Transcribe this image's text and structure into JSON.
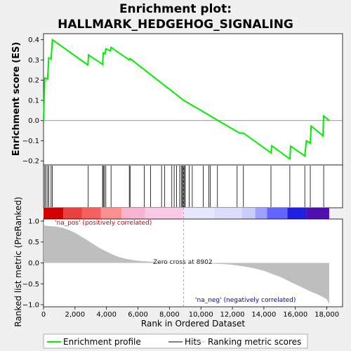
{
  "chart_data": {
    "type": "line",
    "title": "Enrichment plot:",
    "subtitle": "HALLMARK_HEDGEHOG_SIGNALING",
    "panels": {
      "es": {
        "ylabel": "Enrichment score (ES)",
        "ylim": [
          -0.22,
          0.43
        ],
        "yticks": [
          -0.2,
          -0.1,
          0.0,
          0.1,
          0.2,
          0.3,
          0.4
        ],
        "ytick_labels": [
          "−0.2",
          "−0.1",
          "0.0",
          "0.1",
          "0.2",
          "0.3",
          "0.4"
        ],
        "series": [
          {
            "name": "Enrichment profile",
            "color": "#00ee00",
            "x": [
              0,
              80,
              150,
              260,
              330,
              480,
              560,
              2820,
              2860,
              3750,
              3800,
              3900,
              3960,
              4250,
              4290,
              5450,
              5500,
              8902,
              12450,
              12700,
              14450,
              14500,
              15650,
              15700,
              16600,
              16700,
              16950,
              17000,
              17750,
              17800,
              18150
            ],
            "y": [
              0.0,
              0.21,
              0.21,
              0.205,
              0.31,
              0.305,
              0.4,
              0.275,
              0.325,
              0.278,
              0.335,
              0.33,
              0.355,
              0.345,
              0.362,
              0.3,
              0.307,
              0.1,
              -0.062,
              -0.062,
              -0.16,
              -0.125,
              -0.19,
              -0.127,
              -0.175,
              -0.1,
              -0.112,
              -0.027,
              -0.075,
              0.023,
              0.0
            ]
          }
        ]
      },
      "hits": {
        "label": "Hits",
        "positions": [
          80,
          150,
          260,
          330,
          480,
          560,
          2840,
          3750,
          3800,
          3870,
          3960,
          4290,
          5450,
          5500,
          6400,
          6800,
          7500,
          7700,
          8150,
          8300,
          8450,
          8650,
          8750,
          8820,
          8870,
          8900,
          8960,
          9000,
          9250,
          9450,
          10150,
          10500,
          10600,
          11050,
          12300,
          12700,
          14450,
          15650,
          16600,
          16950,
          17800
        ]
      },
      "rank_bar": {
        "segments": [
          {
            "from": 0,
            "to": 1250,
            "color": "#d30000"
          },
          {
            "from": 1250,
            "to": 2450,
            "color": "#eb4040"
          },
          {
            "from": 2450,
            "to": 3650,
            "color": "#f76060"
          },
          {
            "from": 3650,
            "to": 4950,
            "color": "#fa9090"
          },
          {
            "from": 4950,
            "to": 6450,
            "color": "#fab4d2"
          },
          {
            "from": 6450,
            "to": 8850,
            "color": "#fbc8e6"
          },
          {
            "from": 8850,
            "to": 10850,
            "color": "#e6e6ff"
          },
          {
            "from": 10850,
            "to": 12600,
            "color": "#dcdcff"
          },
          {
            "from": 12600,
            "to": 13450,
            "color": "#ccccfa"
          },
          {
            "from": 13450,
            "to": 14200,
            "color": "#a0a0ff"
          },
          {
            "from": 14200,
            "to": 15500,
            "color": "#6464ff"
          },
          {
            "from": 15500,
            "to": 16700,
            "color": "#2020e0"
          },
          {
            "from": 16700,
            "to": 18150,
            "color": "#5010b0"
          }
        ]
      },
      "metric": {
        "ylabel": "Ranked list metric (PreRanked)",
        "ylim": [
          -1.05,
          1.05
        ],
        "yticks": [
          -1.0,
          -0.5,
          0.0,
          0.5,
          1.0
        ],
        "ytick_labels": [
          "−1.0",
          "−0.5",
          "0.0",
          "0.5",
          "1.0"
        ],
        "fill_color": "#bebebe",
        "x": [
          0,
          30,
          100,
          400,
          800,
          1200,
          1600,
          2000,
          2400,
          2800,
          3200,
          3600,
          4000,
          4400,
          4800,
          5200,
          5600,
          6000,
          6400,
          6800,
          7200,
          7600,
          8000,
          8400,
          8902,
          9500,
          10000,
          10500,
          11000,
          11500,
          12000,
          12500,
          13000,
          13500,
          14000,
          14500,
          15000,
          15500,
          16000,
          16500,
          17000,
          17500,
          18000,
          18150
        ],
        "y": [
          1.0,
          0.93,
          0.89,
          0.88,
          0.87,
          0.84,
          0.79,
          0.72,
          0.63,
          0.54,
          0.44,
          0.35,
          0.27,
          0.2,
          0.14,
          0.1,
          0.07,
          0.05,
          0.04,
          0.03,
          0.02,
          0.015,
          0.01,
          0.005,
          0.0,
          -0.005,
          -0.01,
          -0.015,
          -0.02,
          -0.03,
          -0.045,
          -0.07,
          -0.1,
          -0.14,
          -0.19,
          -0.26,
          -0.33,
          -0.42,
          -0.51,
          -0.6,
          -0.69,
          -0.77,
          -0.87,
          -0.99
        ],
        "zero_cross_label": "Zero cross at 8902",
        "zero_cross_rank": 8902,
        "pos_label": "'na_pos' (positively correlated)",
        "neg_label": "'na_neg' (negatively correlated)"
      }
    },
    "xlabel": "Rank in Ordered Dataset",
    "xlim": [
      0,
      19000
    ],
    "xticks": [
      0,
      2000,
      4000,
      6000,
      8000,
      10000,
      12000,
      14000,
      16000,
      18000
    ],
    "xtick_labels": [
      "0",
      "2,000",
      "4,000",
      "6,000",
      "8,000",
      "10,000",
      "12,000",
      "14,000",
      "16,000",
      "18,000"
    ],
    "legend": {
      "placement": "bottom",
      "entries": [
        {
          "label": "Enrichment profile",
          "color": "#00ee00",
          "style": "line-thick"
        },
        {
          "label": "Hits",
          "color": "#000000",
          "style": "line-thin"
        },
        {
          "label": "Ranking metric scores",
          "color": "#bebebe",
          "style": "line-thin"
        }
      ]
    }
  }
}
